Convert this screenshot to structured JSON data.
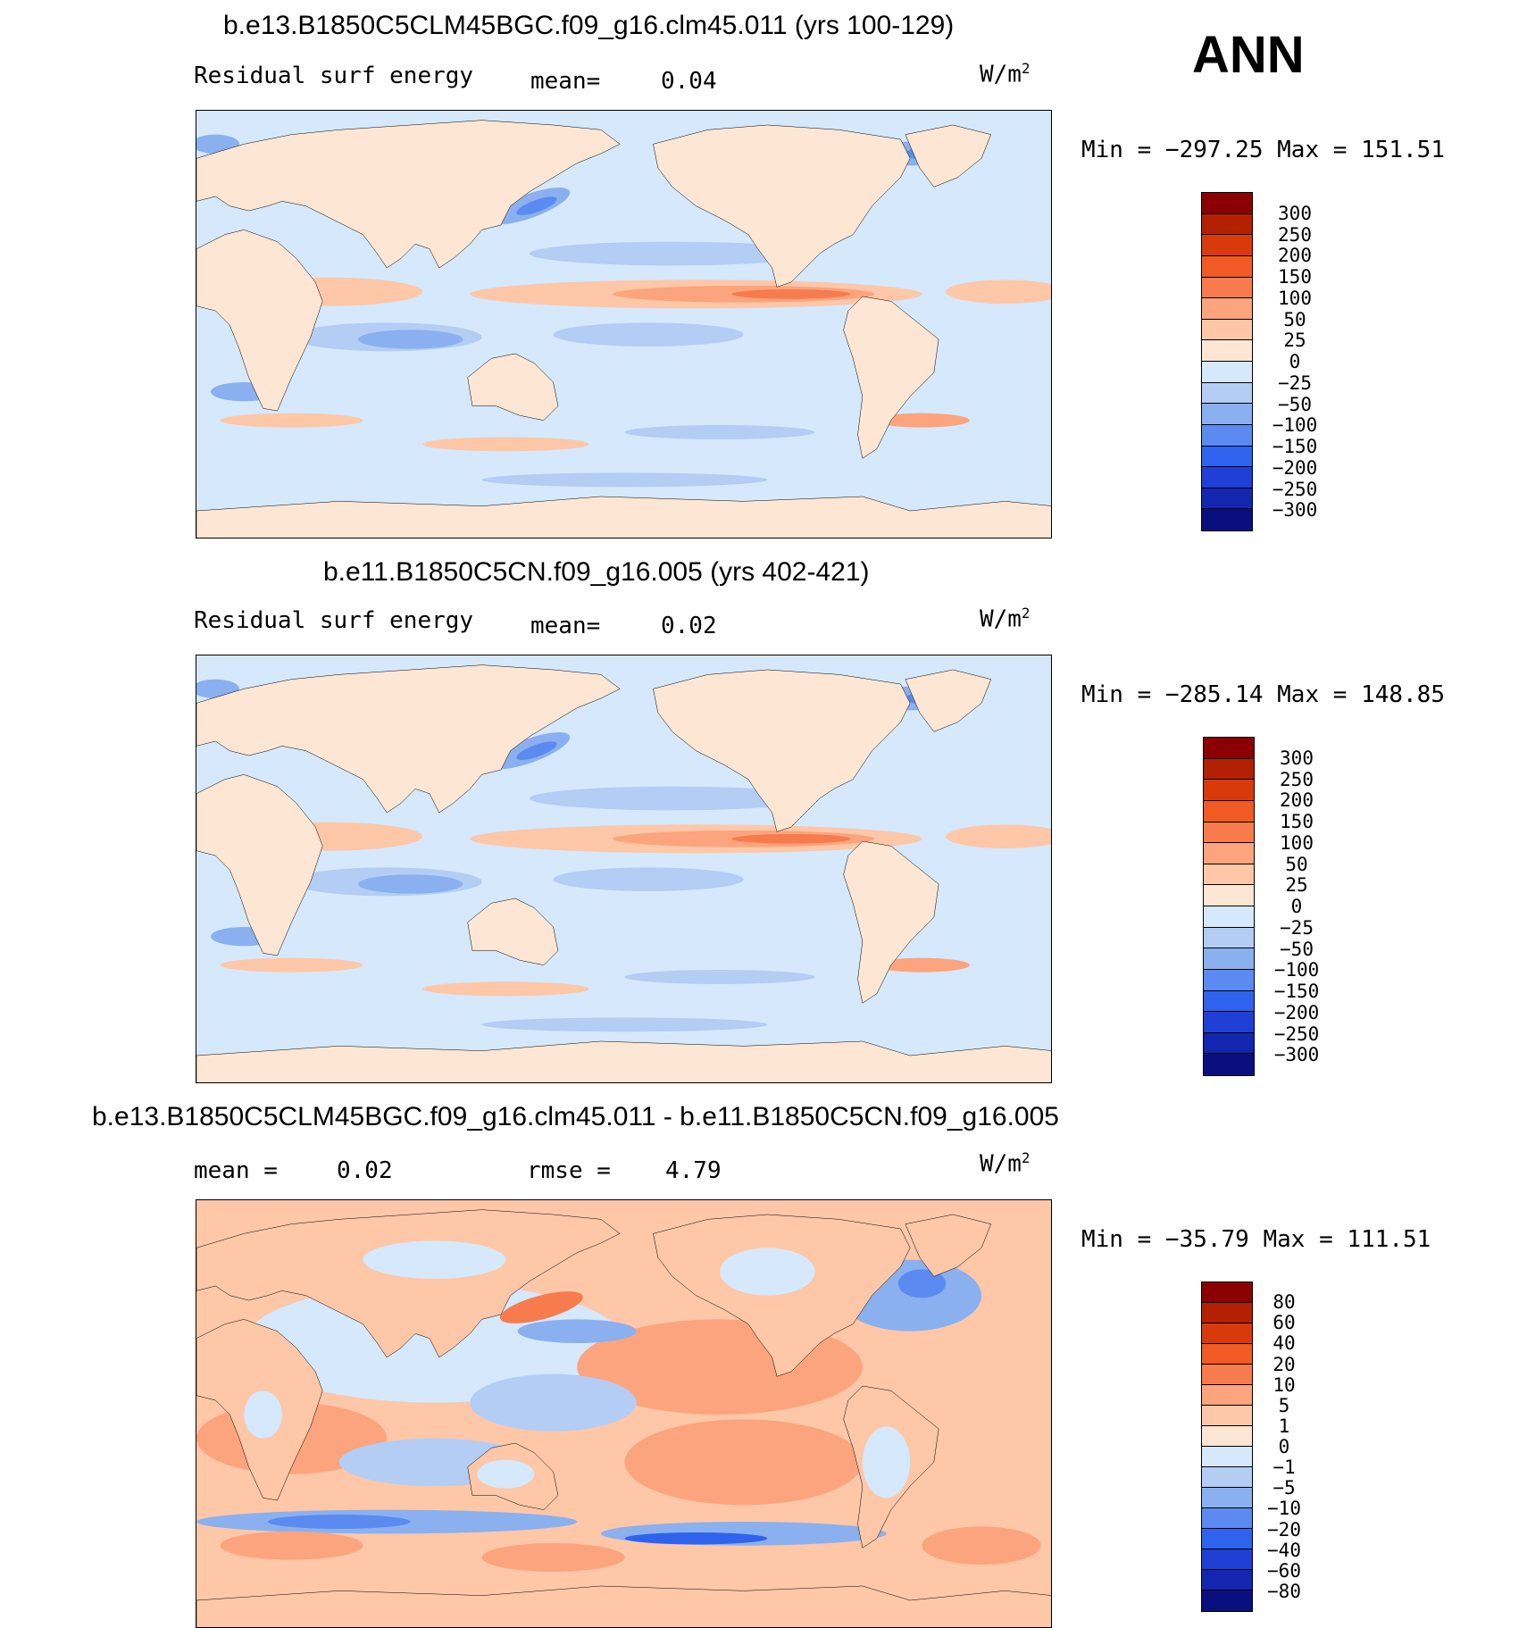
{
  "season": "ANN",
  "panels": [
    {
      "title": "b.e13.B1850C5CLM45BGC.f09_g16.clm45.011 (yrs 100-129)",
      "left_label": "Residual surf energy",
      "mid_label": "mean=",
      "mid_value": "0.04",
      "units": "W/m",
      "units_sup": "2",
      "minmax": "Min = -297.25 Max = 151.51",
      "scale": "abs"
    },
    {
      "title": "b.e11.B1850C5CN.f09_g16.005 (yrs 402-421)",
      "left_label": "Residual surf energy",
      "mid_label": "mean=",
      "mid_value": "0.02",
      "units": "W/m",
      "units_sup": "2",
      "minmax": "Min = -285.14 Max = 148.85",
      "scale": "abs"
    },
    {
      "title": "b.e13.B1850C5CLM45BGC.f09_g16.clm45.011 - b.e11.B1850C5CN.f09_g16.005",
      "left_label": "mean =",
      "left_value": "0.02",
      "mid_label": "rmse =",
      "mid_value": "4.79",
      "units": "W/m",
      "units_sup": "2",
      "minmax": "Min = -35.79 Max = 111.51",
      "scale": "diff"
    }
  ],
  "colorbars": {
    "abs": {
      "labels": [
        "300",
        "250",
        "200",
        "150",
        "100",
        "50",
        "25",
        "0",
        "-25",
        "-50",
        "-100",
        "-150",
        "-200",
        "-250",
        "-300"
      ],
      "colors": [
        "#8b0000",
        "#b42100",
        "#d93a0c",
        "#f15a24",
        "#f77b4d",
        "#fba47e",
        "#fdc7a8",
        "#fde6d4",
        "#d6e8fb",
        "#b3cdf5",
        "#8ab0f0",
        "#5b8bf0",
        "#2f63ee",
        "#1f3fd6",
        "#1326b0",
        "#0a0f7f"
      ]
    },
    "diff": {
      "labels": [
        "80",
        "60",
        "40",
        "20",
        "10",
        "5",
        "1",
        "0",
        "-1",
        "-5",
        "-10",
        "-20",
        "-40",
        "-60",
        "-80"
      ],
      "colors": [
        "#8b0000",
        "#b42100",
        "#d93a0c",
        "#f15a24",
        "#f77b4d",
        "#fba47e",
        "#fdc7a8",
        "#fde6d4",
        "#d6e8fb",
        "#b3cdf5",
        "#8ab0f0",
        "#5b8bf0",
        "#2f63ee",
        "#1f3fd6",
        "#1326b0",
        "#0a0f7f"
      ]
    }
  },
  "map_colors": {
    "ocean": "#d6e8fb",
    "land": "#fde6d4",
    "warm1": "#fdc7a8",
    "warm2": "#fba47e",
    "warm3": "#f77b4d",
    "cool1": "#b3cdf5",
    "cool2": "#8ab0f0",
    "cool3": "#5b8bf0",
    "cool4": "#2f63ee"
  }
}
